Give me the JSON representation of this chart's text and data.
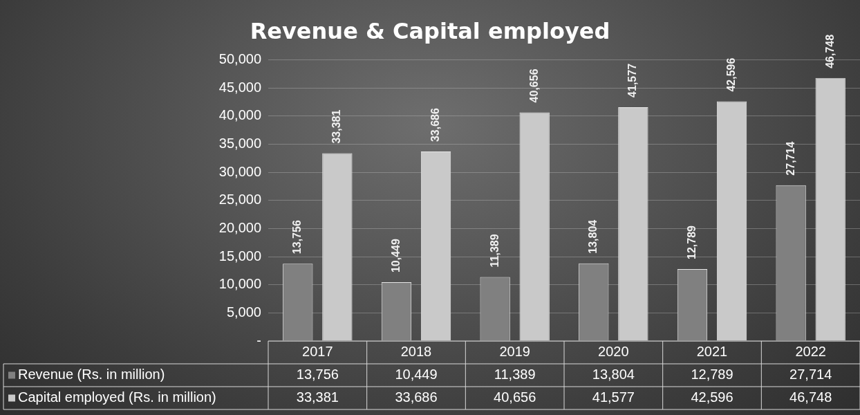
{
  "chart_data": {
    "type": "bar",
    "title": "Revenue & Capital employed",
    "categories": [
      "2017",
      "2018",
      "2019",
      "2020",
      "2021",
      "2022"
    ],
    "series": [
      {
        "name": "Revenue (Rs. in million)",
        "color": "#808080",
        "values": [
          13756,
          10449,
          11389,
          13804,
          12789,
          27714
        ],
        "value_labels": [
          "13,756",
          "10,449",
          "11,389",
          "13,804",
          "12,789",
          "27,714"
        ]
      },
      {
        "name": "Capital employed (Rs. in million)",
        "color": "#c9c9c9",
        "values": [
          33381,
          33686,
          40656,
          41577,
          42596,
          46748
        ],
        "value_labels": [
          "33,381",
          "33,686",
          "40,656",
          "41,577",
          "42,596",
          "46,748"
        ]
      }
    ],
    "ylim": [
      0,
      50000
    ],
    "yticks": [
      {
        "value": 0,
        "label": "-"
      },
      {
        "value": 5000,
        "label": "5,000"
      },
      {
        "value": 10000,
        "label": "10,000"
      },
      {
        "value": 15000,
        "label": "15,000"
      },
      {
        "value": 20000,
        "label": "20,000"
      },
      {
        "value": 25000,
        "label": "25,000"
      },
      {
        "value": 30000,
        "label": "30,000"
      },
      {
        "value": 35000,
        "label": "35,000"
      },
      {
        "value": 40000,
        "label": "40,000"
      },
      {
        "value": 45000,
        "label": "45,000"
      },
      {
        "value": 50000,
        "label": "50,000"
      }
    ],
    "grid": "y",
    "legend": "bottom"
  }
}
